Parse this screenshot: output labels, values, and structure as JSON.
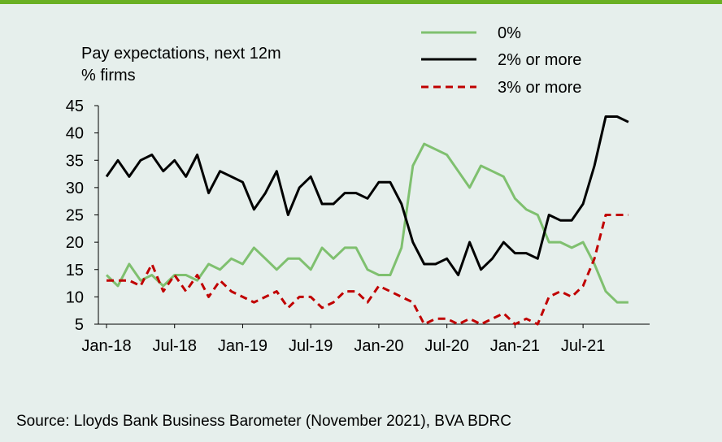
{
  "source_note": "Source: Lloyds Bank Business Barometer (November 2021), BVA BDRC",
  "colors": {
    "topbar": "#6ab023",
    "background": "#e6efec"
  },
  "chart_data": {
    "type": "line",
    "title": "Pay expectations, next 12m",
    "ylabel": "% firms",
    "ylim": [
      5,
      45
    ],
    "yticks": [
      "5",
      "10",
      "15",
      "20",
      "25",
      "30",
      "35",
      "40",
      "45"
    ],
    "xtick_labels": [
      "Jan-18",
      "Jul-18",
      "Jan-19",
      "Jul-19",
      "Jan-20",
      "Jul-20",
      "Jan-21",
      "Jul-21"
    ],
    "x": [
      "Jan-18",
      "Feb-18",
      "Mar-18",
      "Apr-18",
      "May-18",
      "Jun-18",
      "Jul-18",
      "Aug-18",
      "Sep-18",
      "Oct-18",
      "Nov-18",
      "Dec-18",
      "Jan-19",
      "Feb-19",
      "Mar-19",
      "Apr-19",
      "May-19",
      "Jun-19",
      "Jul-19",
      "Aug-19",
      "Sep-19",
      "Oct-19",
      "Nov-19",
      "Dec-19",
      "Jan-20",
      "Feb-20",
      "Mar-20",
      "Apr-20",
      "May-20",
      "Jun-20",
      "Jul-20",
      "Aug-20",
      "Sep-20",
      "Oct-20",
      "Nov-20",
      "Dec-20",
      "Jan-21",
      "Feb-21",
      "Mar-21",
      "Apr-21",
      "May-21",
      "Jun-21",
      "Jul-21",
      "Aug-21",
      "Sep-21",
      "Oct-21",
      "Nov-21"
    ],
    "grid": false,
    "legend_position": "top-right",
    "series": [
      {
        "name": "0%",
        "color": "#7fc06f",
        "dash": "solid",
        "values": [
          14,
          12,
          16,
          13,
          14,
          12,
          14,
          14,
          13,
          16,
          15,
          17,
          16,
          19,
          17,
          15,
          17,
          17,
          15,
          19,
          17,
          19,
          19,
          15,
          14,
          14,
          19,
          34,
          38,
          37,
          36,
          33,
          30,
          34,
          33,
          32,
          28,
          26,
          25,
          20,
          20,
          19,
          20,
          16,
          11,
          9,
          9
        ]
      },
      {
        "name": "2% or more",
        "color": "#000000",
        "dash": "solid",
        "values": [
          32,
          35,
          32,
          35,
          36,
          33,
          35,
          32,
          36,
          29,
          33,
          32,
          31,
          26,
          29,
          33,
          25,
          30,
          32,
          27,
          27,
          29,
          29,
          28,
          31,
          31,
          27,
          20,
          16,
          16,
          17,
          14,
          20,
          15,
          17,
          20,
          18,
          18,
          17,
          25,
          24,
          24,
          27,
          34,
          43,
          43,
          42
        ]
      },
      {
        "name": "3% or more",
        "color": "#c00000",
        "dash": "dashed",
        "values": [
          13,
          13,
          13,
          12,
          16,
          11,
          14,
          11,
          14,
          10,
          13,
          11,
          10,
          9,
          10,
          11,
          8,
          10,
          10,
          8,
          9,
          11,
          11,
          9,
          12,
          11,
          10,
          9,
          5,
          6,
          6,
          5,
          6,
          5,
          6,
          7,
          5,
          6,
          5,
          10,
          11,
          10,
          12,
          17,
          25,
          25,
          25
        ]
      }
    ]
  }
}
